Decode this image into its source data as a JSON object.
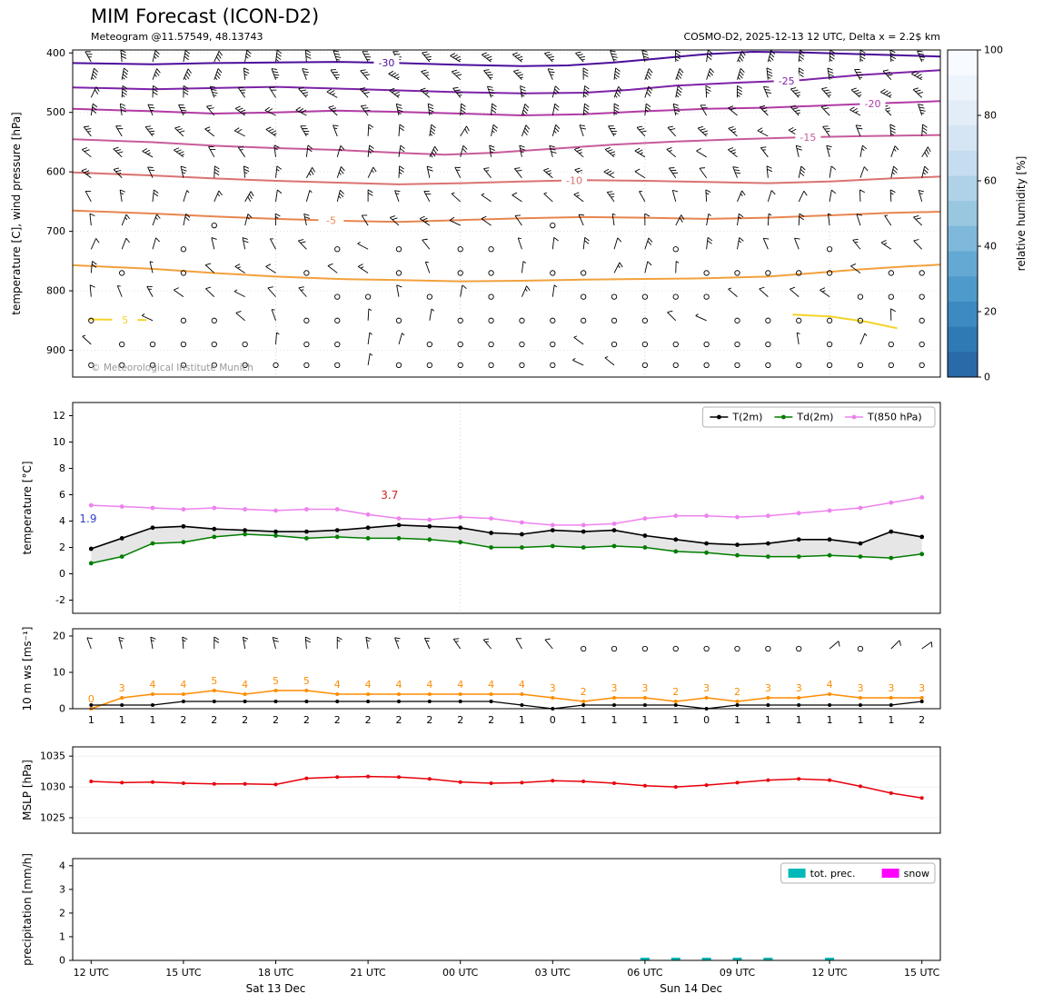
{
  "header": {
    "title": "MIM Forecast (ICON-D2)",
    "subtitle_left": "Meteogram @11.57549, 48.13743",
    "subtitle_right": "COSMO-D2, 2025-12-13 12 UTC, Delta x = 2.2$ km"
  },
  "watermark": "© Meteorological Institute Munich",
  "x_axis": {
    "tick_hours": [
      0,
      3,
      6,
      9,
      12,
      15,
      18,
      21,
      24,
      27
    ],
    "tick_labels": [
      "12 UTC",
      "15 UTC",
      "18 UTC",
      "21 UTC",
      "00 UTC",
      "03 UTC",
      "06 UTC",
      "09 UTC",
      "12 UTC",
      "15 UTC"
    ],
    "day_labels": [
      {
        "label": "Sat 13 Dec",
        "hour": 6
      },
      {
        "label": "Sun 14 Dec",
        "hour": 19.5
      }
    ]
  },
  "chart_data": [
    {
      "id": "cross_section",
      "type": "contour",
      "ylabel": "temperature [C], wind pressure [hPa]",
      "ylim": [
        945,
        395
      ],
      "yticks": [
        400,
        500,
        600,
        700,
        800,
        900
      ],
      "colorbar": {
        "label": "relative humidity [%]",
        "ticks": [
          0,
          20,
          40,
          60,
          80,
          100
        ],
        "colors": [
          "#f7fbff",
          "#edf4fb",
          "#e2edf8",
          "#d5e5f4",
          "#c6ddef",
          "#b0d2e9",
          "#99c7e0",
          "#7eb8da",
          "#64a9d3",
          "#4e9aca",
          "#3d8ac0",
          "#2f7ab5",
          "#2a6aa8"
        ]
      },
      "contours": [
        {
          "level": -30,
          "color": "#4b0d9b",
          "labels": [
            {
              "h": 9.6,
              "text": "-30"
            }
          ],
          "segments": [
            [
              [
                -0.6,
                417
              ],
              [
                2,
                419
              ],
              [
                4,
                417
              ],
              [
                6,
                416
              ],
              [
                8,
                415
              ],
              [
                10,
                417
              ],
              [
                12,
                420
              ],
              [
                14,
                422
              ],
              [
                15.5,
                421
              ],
              [
                17,
                416
              ],
              [
                18.5,
                409
              ],
              [
                20,
                402
              ],
              [
                21.5,
                398
              ],
              [
                23,
                399
              ],
              [
                25,
                402
              ],
              [
                27.6,
                406
              ]
            ]
          ]
        },
        {
          "level": -25,
          "color": "#7e22a8",
          "labels": [
            {
              "h": 22.6,
              "text": "-25"
            }
          ],
          "segments": [
            [
              [
                -0.6,
                458
              ],
              [
                2,
                461
              ],
              [
                4,
                459
              ],
              [
                6,
                457
              ],
              [
                8,
                460
              ],
              [
                10,
                463
              ],
              [
                12,
                466
              ],
              [
                14,
                468
              ],
              [
                16,
                467
              ],
              [
                17.5,
                462
              ],
              [
                19,
                455
              ],
              [
                21,
                450
              ],
              [
                23,
                446
              ],
              [
                25,
                437
              ],
              [
                27.6,
                429
              ]
            ]
          ]
        },
        {
          "level": -20,
          "color": "#b23ba5",
          "labels": [
            {
              "h": 25.4,
              "text": "-20"
            }
          ],
          "segments": [
            [
              [
                -0.6,
                494
              ],
              [
                2,
                498
              ],
              [
                4,
                502
              ],
              [
                6,
                500
              ],
              [
                8,
                497
              ],
              [
                10,
                499
              ],
              [
                12,
                502
              ],
              [
                14,
                505
              ],
              [
                16,
                503
              ],
              [
                18,
                498
              ],
              [
                20,
                494
              ],
              [
                22,
                492
              ],
              [
                24,
                488
              ],
              [
                26,
                484
              ],
              [
                27.6,
                481
              ]
            ]
          ]
        },
        {
          "level": -15,
          "color": "#c75b9b",
          "labels": [
            {
              "h": 23.3,
              "text": "-15"
            }
          ],
          "segments": [
            [
              [
                -0.6,
                545
              ],
              [
                2,
                550
              ],
              [
                4,
                556
              ],
              [
                6,
                560
              ],
              [
                8,
                563
              ],
              [
                10,
                568
              ],
              [
                11.5,
                571
              ],
              [
                13,
                568
              ],
              [
                15,
                561
              ],
              [
                17,
                554
              ],
              [
                19,
                549
              ],
              [
                21,
                545
              ],
              [
                23,
                542
              ],
              [
                25,
                540
              ],
              [
                27.6,
                538
              ]
            ]
          ]
        },
        {
          "level": -10,
          "color": "#d97370",
          "labels": [
            {
              "h": 15.7,
              "text": "-10"
            }
          ],
          "segments": [
            [
              [
                -0.6,
                601
              ],
              [
                2,
                606
              ],
              [
                4,
                611
              ],
              [
                6,
                615
              ],
              [
                8,
                618
              ],
              [
                10,
                621
              ],
              [
                12,
                619
              ],
              [
                14,
                616
              ],
              [
                16,
                614
              ],
              [
                18,
                615
              ],
              [
                20,
                617
              ],
              [
                22,
                619
              ],
              [
                24,
                616
              ],
              [
                26,
                611
              ],
              [
                27.6,
                608
              ]
            ]
          ]
        },
        {
          "level": -5,
          "color": "#e8854f",
          "labels": [
            {
              "h": 7.8,
              "text": "-5"
            }
          ],
          "segments": [
            [
              [
                -0.6,
                665
              ],
              [
                2,
                670
              ],
              [
                4,
                675
              ],
              [
                6,
                679
              ],
              [
                8,
                682
              ],
              [
                10,
                684
              ],
              [
                12,
                681
              ],
              [
                14,
                678
              ],
              [
                16,
                676
              ],
              [
                18,
                677
              ],
              [
                20,
                679
              ],
              [
                22,
                677
              ],
              [
                24,
                673
              ],
              [
                26,
                669
              ],
              [
                27.6,
                667
              ]
            ]
          ]
        },
        {
          "level": 0,
          "color": "#f2a13d",
          "labels": [],
          "segments": [
            [
              [
                -0.6,
                757
              ],
              [
                2,
                763
              ],
              [
                4,
                770
              ],
              [
                6,
                776
              ],
              [
                8,
                780
              ],
              [
                10,
                782
              ],
              [
                12,
                784
              ],
              [
                14,
                783
              ],
              [
                16,
                781
              ],
              [
                18,
                780
              ],
              [
                20,
                779
              ],
              [
                22,
                776
              ],
              [
                23.5,
                770
              ],
              [
                25,
                764
              ],
              [
                26.5,
                759
              ],
              [
                27.6,
                756
              ]
            ]
          ]
        },
        {
          "level": 5,
          "color": "#f5d327",
          "labels": [
            {
              "h": 1.1,
              "text": "5"
            }
          ],
          "segments": [
            [
              [
                -0.1,
                848
              ],
              [
                1.8,
                849
              ]
            ],
            [
              [
                22.8,
                840
              ],
              [
                24,
                843
              ],
              [
                25.2,
                852
              ],
              [
                26.2,
                863
              ]
            ]
          ]
        }
      ],
      "barb_levels": [
        415,
        445,
        475,
        505,
        540,
        575,
        610,
        650,
        690,
        730,
        770,
        810,
        850,
        890,
        925
      ]
    },
    {
      "id": "temperature",
      "type": "line",
      "ylabel": "temperature [°C]",
      "ylim": [
        -3,
        13
      ],
      "yticks": [
        -2,
        0,
        2,
        4,
        6,
        8,
        10,
        12
      ],
      "fill_color": "#dcdcdc",
      "series": [
        {
          "name": "T(2m)",
          "color": "#000000",
          "values": [
            1.9,
            2.7,
            3.5,
            3.6,
            3.4,
            3.3,
            3.2,
            3.2,
            3.3,
            3.5,
            3.7,
            3.6,
            3.5,
            3.1,
            3.0,
            3.3,
            3.2,
            3.3,
            2.9,
            2.6,
            2.3,
            2.2,
            2.3,
            2.6,
            2.6,
            2.3,
            3.2,
            2.8
          ]
        },
        {
          "name": "Td(2m)",
          "color": "#007d00",
          "values": [
            0.8,
            1.3,
            2.3,
            2.4,
            2.8,
            3.0,
            2.9,
            2.7,
            2.8,
            2.7,
            2.7,
            2.6,
            2.4,
            2.0,
            2.0,
            2.1,
            2.0,
            2.1,
            2.0,
            1.7,
            1.6,
            1.4,
            1.3,
            1.3,
            1.4,
            1.3,
            1.2,
            1.5
          ]
        },
        {
          "name": "T(850 hPa)",
          "color": "#ee82ee",
          "values": [
            5.2,
            5.1,
            5.0,
            4.9,
            5.0,
            4.9,
            4.8,
            4.9,
            4.9,
            4.5,
            4.2,
            4.1,
            4.3,
            4.2,
            3.9,
            3.7,
            3.7,
            3.8,
            4.2,
            4.4,
            4.4,
            4.3,
            4.4,
            4.6,
            4.8,
            5.0,
            5.4,
            5.8
          ]
        }
      ],
      "annotations": [
        {
          "text": "1.9",
          "color": "#3344cc",
          "h": -0.1,
          "v": 3.9
        },
        {
          "text": "3.7",
          "color": "#cc2222",
          "h": 9.7,
          "v": 5.7
        }
      ]
    },
    {
      "id": "wind",
      "type": "line",
      "ylabel": "10 m ws [ms⁻¹]",
      "ylim": [
        0,
        22
      ],
      "yticks": [
        0,
        10,
        20
      ],
      "barb_v": 16.5,
      "series": [
        {
          "name": "gust",
          "color": "#ff8c00",
          "values": [
            0,
            3,
            4,
            4,
            5,
            4,
            5,
            5,
            4,
            4,
            4,
            4,
            4,
            4,
            4,
            3,
            2,
            3,
            3,
            2,
            3,
            2,
            3,
            3,
            4,
            3,
            3,
            3
          ]
        },
        {
          "name": "mean",
          "color": "#000000",
          "values": [
            1,
            1,
            1,
            2,
            2,
            2,
            2,
            2,
            2,
            2,
            2,
            2,
            2,
            2,
            1,
            0,
            1,
            1,
            1,
            1,
            0,
            1,
            1,
            1,
            1,
            1,
            1,
            2
          ]
        }
      ],
      "below_labels": [
        1,
        1,
        1,
        2,
        2,
        2,
        2,
        2,
        2,
        2,
        2,
        2,
        2,
        2,
        1,
        0,
        1,
        1,
        1,
        1,
        0,
        1,
        1,
        1,
        1,
        1,
        1,
        2
      ],
      "barbs": [
        [
          250,
          2
        ],
        [
          255,
          3
        ],
        [
          260,
          3
        ],
        [
          265,
          3
        ],
        [
          270,
          4
        ],
        [
          260,
          3
        ],
        [
          255,
          4
        ],
        [
          265,
          4
        ],
        [
          270,
          3
        ],
        [
          260,
          3
        ],
        [
          250,
          3
        ],
        [
          245,
          3
        ],
        [
          235,
          3
        ],
        [
          230,
          3
        ],
        [
          240,
          2
        ],
        [
          230,
          2
        ],
        [
          0,
          0
        ],
        [
          0,
          0
        ],
        [
          0,
          0
        ],
        [
          0,
          0
        ],
        [
          0,
          0
        ],
        [
          0,
          0
        ],
        [
          0,
          0
        ],
        [
          0,
          0
        ],
        [
          320,
          2
        ],
        [
          0,
          0
        ],
        [
          315,
          2
        ],
        [
          325,
          2
        ]
      ]
    },
    {
      "id": "mslp",
      "type": "line",
      "ylabel": "MSLP [hPa]",
      "ylim": [
        1022.5,
        1036.5
      ],
      "yticks": [
        1025,
        1030,
        1035
      ],
      "series": [
        {
          "name": "MSLP",
          "color": "#e8000b",
          "values": [
            1030.9,
            1030.7,
            1030.8,
            1030.6,
            1030.5,
            1030.5,
            1030.4,
            1031.4,
            1031.6,
            1031.7,
            1031.6,
            1031.3,
            1030.8,
            1030.6,
            1030.7,
            1031.0,
            1030.9,
            1030.6,
            1030.2,
            1030.0,
            1030.3,
            1030.7,
            1031.1,
            1031.3,
            1031.1,
            1030.1,
            1029.0,
            1028.2
          ]
        }
      ]
    },
    {
      "id": "precip",
      "type": "bar",
      "ylabel": "precipitation [mm/h]",
      "ylim": [
        0,
        4.3
      ],
      "yticks": [
        0,
        1,
        2,
        3,
        4
      ],
      "series": [
        {
          "name": "tot. prec.",
          "color": "#00b9b9",
          "values": [
            0,
            0,
            0,
            0,
            0,
            0,
            0,
            0,
            0,
            0,
            0,
            0,
            0,
            0,
            0,
            0,
            0,
            0,
            0.04,
            0.05,
            0.04,
            0.05,
            0.04,
            0,
            0.04,
            0,
            0,
            0
          ]
        },
        {
          "name": "snow",
          "color": "#ff00ff",
          "values": [
            0,
            0,
            0,
            0,
            0,
            0,
            0,
            0,
            0,
            0,
            0,
            0,
            0,
            0,
            0,
            0,
            0,
            0,
            0,
            0,
            0,
            0,
            0,
            0,
            0,
            0,
            0,
            0
          ]
        }
      ],
      "legend": [
        "tot. prec.",
        "snow"
      ]
    }
  ]
}
